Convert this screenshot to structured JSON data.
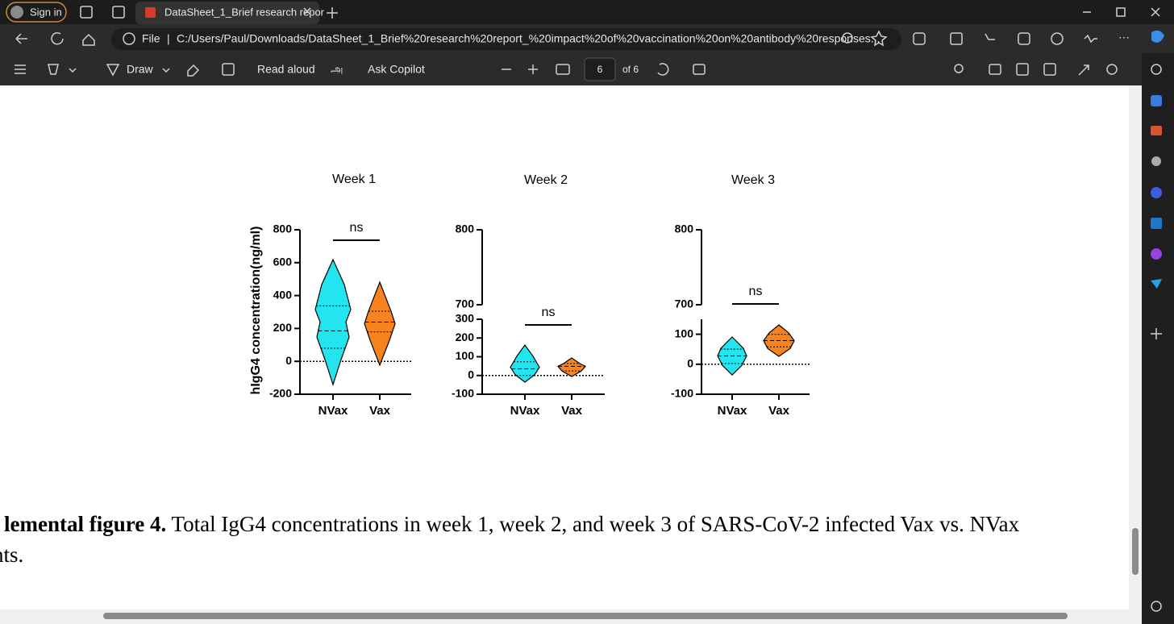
{
  "browser": {
    "sign_in": "Sign in",
    "tab_title": "DataSheet_1_Brief research repor",
    "address_label": "File",
    "url": "C:/Users/Paul/Downloads/DataSheet_1_Brief%20research%20report_%20impact%20of%20vaccination%20on%20antibody%20responses..."
  },
  "pdf_toolbar": {
    "draw": "Draw",
    "read_aloud": "Read aloud",
    "ask_copilot": "Ask Copilot",
    "page": "6",
    "page_of": "of 6"
  },
  "figure": {
    "y_label": "hIgG4 concentration(ng/ml)",
    "panels": [
      {
        "title": "Week 1",
        "categories": [
          "NVax",
          "Vax"
        ],
        "annotation": "ns",
        "segments": [
          {
            "ylim": [
              -200,
              800
            ],
            "yticks": [
              -200,
              0,
              200,
              400,
              600,
              800
            ]
          }
        ]
      },
      {
        "title": "Week 2",
        "categories": [
          "NVax",
          "Vax"
        ],
        "annotation": "ns",
        "segments": [
          {
            "ylim": [
              -100,
              300
            ],
            "yticks": [
              -100,
              0,
              100,
              200,
              300
            ]
          },
          {
            "ylim": [
              700,
              800
            ],
            "yticks": [
              700,
              800
            ]
          }
        ]
      },
      {
        "title": "Week 3",
        "categories": [
          "NVax",
          "Vax"
        ],
        "annotation": "ns",
        "segments": [
          {
            "ylim": [
              -100,
              150
            ],
            "yticks": [
              -100,
              0,
              100
            ]
          },
          {
            "ylim": [
              700,
              800
            ],
            "yticks": [
              700,
              800
            ]
          }
        ]
      }
    ]
  },
  "caption": {
    "bold": "lemental figure 4.",
    "text": " Total IgG4 concentrations in week 1, week 2, and week 3 of SARS-CoV-2 infected Vax vs. NVax",
    "line2": "nts."
  }
}
